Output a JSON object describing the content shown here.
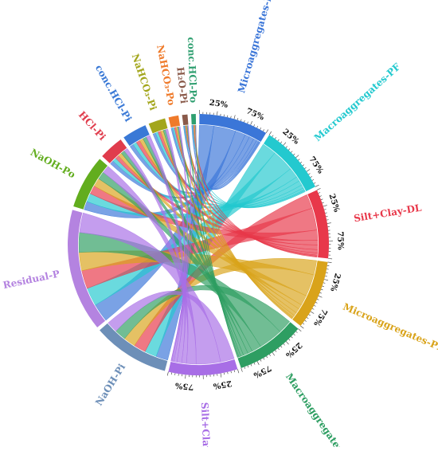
{
  "chart_data": {
    "type": "chord",
    "title": "",
    "sectors": [
      {
        "name": "Microaggregates-DL",
        "group": "source",
        "size": 9,
        "color": "#3b76d8"
      },
      {
        "name": "Macroaggregates-PF",
        "group": "source",
        "size": 9,
        "color": "#23c9cf"
      },
      {
        "name": "Silt+Clay-DL",
        "group": "source",
        "size": 9,
        "color": "#e8384a"
      },
      {
        "name": "Microaggregates-PF",
        "group": "source",
        "size": 9,
        "color": "#d9a31a"
      },
      {
        "name": "Macroaggregates-DL",
        "group": "source",
        "size": 9,
        "color": "#2e9e62"
      },
      {
        "name": "Silt+Clay-PF",
        "group": "source",
        "size": 9,
        "color": "#a86ee6"
      },
      {
        "name": "NaOH-Pi",
        "group": "target",
        "size": 10,
        "color": "#6d8fb8"
      },
      {
        "name": "Residual-P",
        "group": "target",
        "size": 16,
        "color": "#b483e0"
      },
      {
        "name": "NaOH-Po",
        "group": "target",
        "size": 7,
        "color": "#62ad1e"
      },
      {
        "name": "HCl-Pi",
        "group": "target",
        "size": 3.2,
        "color": "#e03c4c"
      },
      {
        "name": "conc.HCl-Pi",
        "group": "target",
        "size": 3.2,
        "color": "#3a79d6"
      },
      {
        "name": "NaHCO₃-Pi",
        "group": "target",
        "size": 2.2,
        "color": "#a3a61c"
      },
      {
        "name": "NaHCO₃-Po",
        "group": "target",
        "size": 1.3,
        "color": "#ef7a2a"
      },
      {
        "name": "H₂O-Pi",
        "group": "target",
        "size": 0.7,
        "color": "#8a5a4a"
      },
      {
        "name": "conc.HCl-Po",
        "group": "target",
        "size": 0.6,
        "color": "#2f9f70"
      }
    ],
    "tick_labels": [
      "25%",
      "75%"
    ],
    "flows": {
      "targets": [
        "NaOH-Pi",
        "Residual-P",
        "NaOH-Po",
        "HCl-Pi",
        "conc.HCl-Pi",
        "NaHCO₃-Pi",
        "NaHCO₃-Po",
        "H₂O-Pi",
        "conc.HCl-Po"
      ],
      "matrix": [
        [
          1.7,
          2.6,
          1.2,
          0.55,
          0.55,
          0.4,
          0.25,
          0.12,
          0.12
        ],
        [
          1.7,
          2.6,
          1.2,
          0.55,
          0.55,
          0.4,
          0.25,
          0.12,
          0.12
        ],
        [
          1.7,
          2.6,
          1.2,
          0.55,
          0.55,
          0.4,
          0.25,
          0.12,
          0.12
        ],
        [
          1.7,
          2.6,
          1.2,
          0.55,
          0.55,
          0.4,
          0.25,
          0.12,
          0.12
        ],
        [
          1.6,
          2.8,
          1.1,
          0.55,
          0.55,
          0.35,
          0.2,
          0.12,
          0.08
        ],
        [
          1.6,
          2.8,
          1.1,
          0.55,
          0.55,
          0.35,
          0.2,
          0.1,
          0.04
        ]
      ]
    }
  }
}
